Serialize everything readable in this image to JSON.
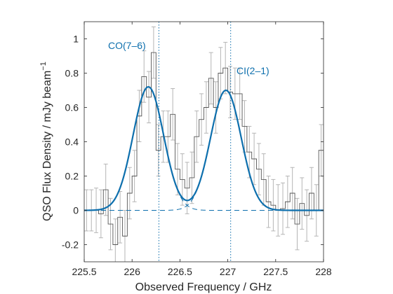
{
  "chart_data": {
    "type": "line",
    "xlabel": "Observed Frequency / GHz",
    "ylabel": "QSO Flux Density / mJy beam",
    "ylabel_sup": "−1",
    "xlim": [
      225.5,
      228.0
    ],
    "ylim": [
      -0.3,
      1.1
    ],
    "xticks": [
      225.5,
      226,
      226.5,
      227,
      227.5,
      228
    ],
    "xtick_labels": [
      "225.5",
      "226",
      "226.5",
      "227",
      "227.5",
      "228"
    ],
    "yticks": [
      -0.2,
      0,
      0.2,
      0.4,
      0.6,
      0.8,
      1
    ],
    "ytick_labels": [
      "-0.2",
      "0",
      "0.2",
      "0.4",
      "0.6",
      "0.8",
      "1"
    ],
    "grid": false,
    "colors": {
      "spectrum": "#555555",
      "errorbar": "#b5b5b5",
      "fit": "#0d6fad",
      "axis": "#262626"
    },
    "spectrum": {
      "x": [
        225.5,
        225.55,
        225.6,
        225.65,
        225.7,
        225.75,
        225.8,
        225.85,
        225.9,
        225.95,
        226.0,
        226.05,
        226.1,
        226.15,
        226.2,
        226.25,
        226.3,
        226.35,
        226.4,
        226.45,
        226.5,
        226.55,
        226.6,
        226.65,
        226.7,
        226.75,
        226.8,
        226.85,
        226.9,
        226.95,
        227.0,
        227.05,
        227.1,
        227.15,
        227.2,
        227.25,
        227.3,
        227.35,
        227.4,
        227.45,
        227.5,
        227.55,
        227.6,
        227.65,
        227.7,
        227.75,
        227.8,
        227.85,
        227.9,
        227.95
      ],
      "flux": [
        0.0,
        0.0,
        0.0,
        -0.02,
        0.12,
        -0.08,
        -0.2,
        -0.04,
        -0.15,
        0.1,
        0.2,
        0.55,
        0.78,
        0.66,
        0.92,
        0.35,
        0.43,
        0.43,
        0.56,
        0.24,
        0.18,
        0.13,
        0.19,
        0.43,
        0.53,
        0.6,
        0.77,
        0.6,
        0.8,
        0.83,
        0.69,
        0.68,
        0.68,
        0.49,
        0.34,
        0.3,
        0.24,
        0.18,
        0.05,
        0.03,
        0.0,
        0.01,
        0.05,
        0.1,
        -0.08,
        0.04,
        -0.03,
        0.1,
        0.0,
        0.35
      ],
      "error": [
        0.12,
        0.12,
        0.13,
        0.14,
        0.15,
        0.15,
        0.15,
        0.15,
        0.15,
        0.15,
        0.15,
        0.15,
        0.15,
        0.15,
        0.15,
        0.15,
        0.15,
        0.15,
        0.15,
        0.15,
        0.15,
        0.15,
        0.15,
        0.15,
        0.15,
        0.15,
        0.15,
        0.15,
        0.15,
        0.15,
        0.15,
        0.15,
        0.15,
        0.15,
        0.15,
        0.15,
        0.15,
        0.15,
        0.15,
        0.15,
        0.15,
        0.15,
        0.15,
        0.15,
        0.15,
        0.15,
        0.15,
        0.15,
        0.15,
        0.15
      ]
    },
    "fit_components": [
      {
        "center": 226.17,
        "amplitude": 0.72,
        "sigma": 0.16
      },
      {
        "center": 226.98,
        "amplitude": 0.7,
        "sigma": 0.16
      }
    ],
    "line_markers": [
      {
        "label": "CO(7–6)",
        "x": 226.28
      },
      {
        "label": "CI(2–1)",
        "x": 227.03
      }
    ]
  }
}
